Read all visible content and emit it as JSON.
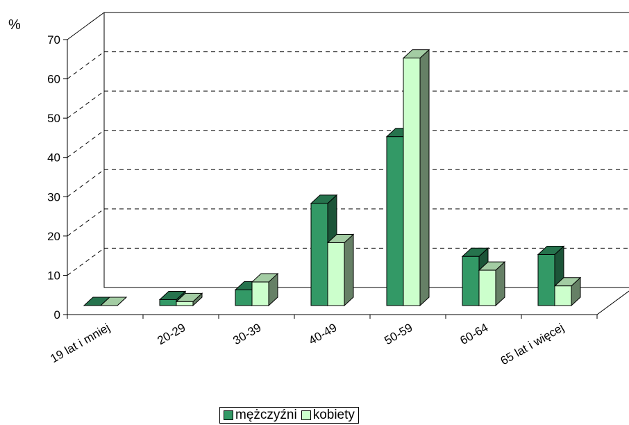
{
  "chart_data": {
    "type": "bar",
    "unit_label": "%",
    "categories": [
      "19 lat i mniej",
      "20-29",
      "30-39",
      "40-49",
      "50-59",
      "60-64",
      "65 lat i więcej"
    ],
    "series": [
      {
        "name": "mężczyźni",
        "values": [
          0,
          1.5,
          4,
          26,
          43,
          12.5,
          13
        ],
        "color": "#339966"
      },
      {
        "name": "kobiety",
        "values": [
          0,
          1,
          6,
          16,
          63,
          9,
          5
        ],
        "color": "#ccffcc"
      }
    ],
    "ylim": [
      0,
      70
    ],
    "yticks": [
      0,
      10,
      20,
      30,
      40,
      50,
      60,
      70
    ],
    "grid": true,
    "legend_position": "bottom"
  }
}
